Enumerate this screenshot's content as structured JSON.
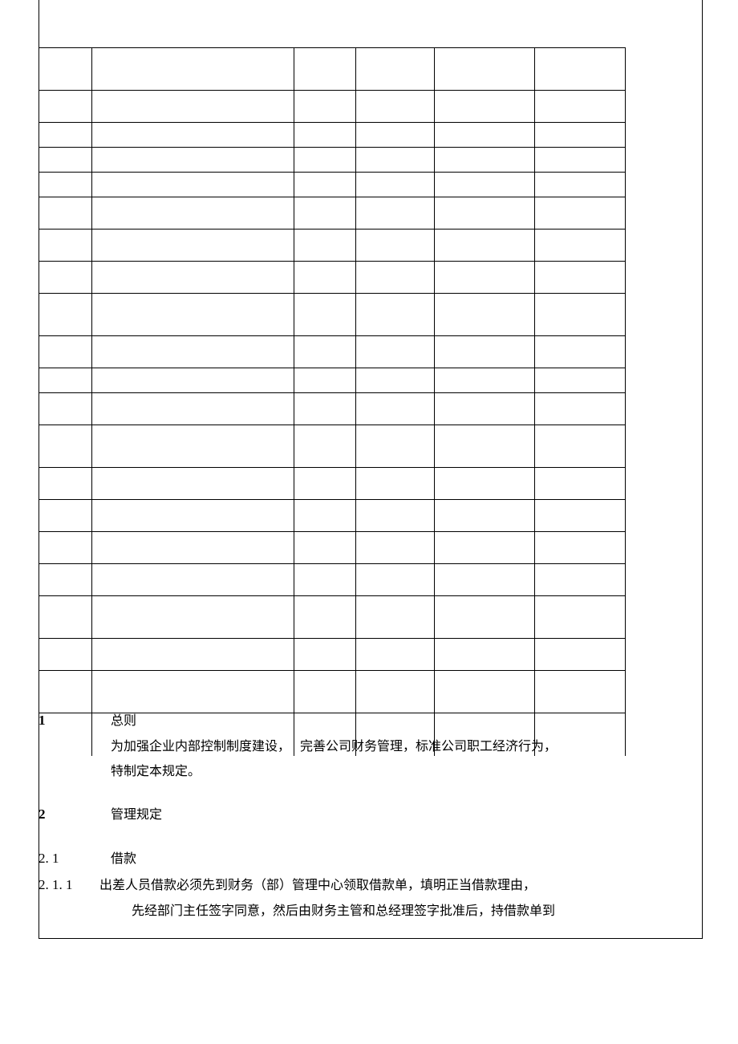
{
  "table": {
    "num_columns": 6,
    "column_classes": [
      "col1",
      "col2",
      "col3",
      "col4",
      "col5",
      "col6"
    ],
    "rows": [
      {
        "class": "tall"
      },
      {
        "class": ""
      },
      {
        "class": "short"
      },
      {
        "class": "short"
      },
      {
        "class": "short"
      },
      {
        "class": ""
      },
      {
        "class": ""
      },
      {
        "class": ""
      },
      {
        "class": "tall"
      },
      {
        "class": ""
      },
      {
        "class": "short"
      },
      {
        "class": ""
      },
      {
        "class": "tall"
      },
      {
        "class": ""
      },
      {
        "class": ""
      },
      {
        "class": ""
      },
      {
        "class": ""
      },
      {
        "class": "tall"
      },
      {
        "class": ""
      },
      {
        "class": "tall"
      },
      {
        "class": "tall last-row"
      }
    ],
    "border_color": "#000000",
    "background_color": "#ffffff"
  },
  "sections": {
    "s1": {
      "num": "1",
      "title": "总则",
      "body_line1_a": "为加强企业内部控制制度建设，",
      "body_line1_b": "完善公司财务管理，标准公司职工经济行为，",
      "body_line2": "特制定本规定。"
    },
    "s2": {
      "num": "2",
      "title": "管理规定"
    },
    "s21": {
      "num": "2. 1",
      "title": "借款"
    },
    "s211": {
      "num": "2. 1. 1",
      "body_line1": "出差人员借款必须先到财务（部）管理中心领取借款单，填明正当借款理由，",
      "body_line2": "先经部门主任签字同意，然后由财务主管和总经理签字批准后，持借款单到"
    }
  }
}
